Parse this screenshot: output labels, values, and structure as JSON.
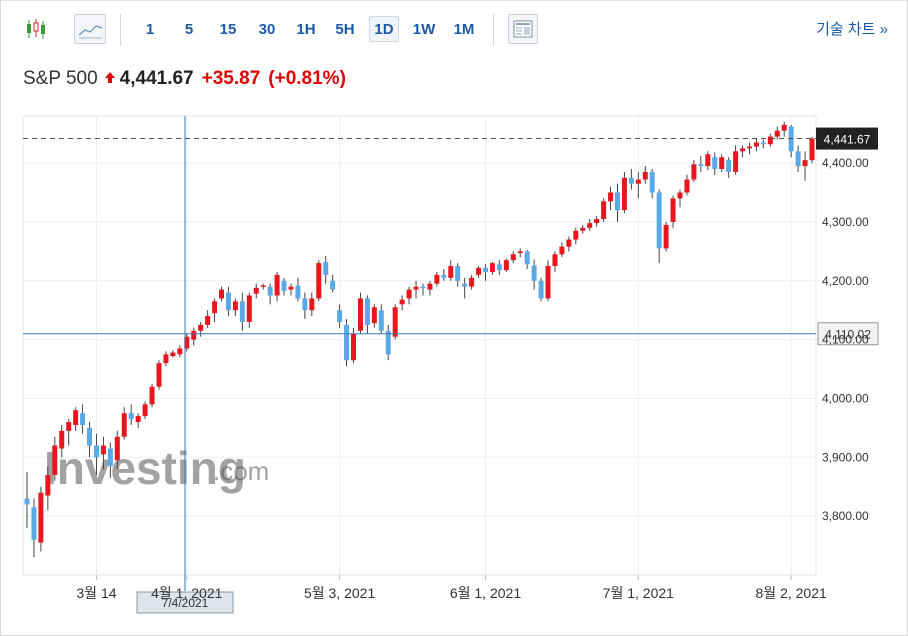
{
  "toolbar": {
    "intervals": [
      "1",
      "5",
      "15",
      "30",
      "1H",
      "5H",
      "1D",
      "1W",
      "1M"
    ],
    "active_interval": "1D",
    "tech_chart_label": "기술 차트 »",
    "icons": [
      "candlestick-chart-icon",
      "line-chart-icon",
      "news-layout-icon"
    ]
  },
  "quote": {
    "name": "S&P 500",
    "direction_icon": "up-arrow-icon",
    "price": "4,441.67",
    "change": "+35.87",
    "change_pct": "(+0.81%)"
  },
  "colors": {
    "up": "#e8171f",
    "down": "#5aa9e6",
    "accent_text": "#1a5aa6",
    "crosshair": "#3a78b5"
  },
  "watermark": {
    "brand": "Investing",
    "suffix": ".com"
  },
  "crosshair": {
    "x_label": "7/4/2021",
    "y_label": "4,110.02",
    "y_value": 4110.02
  },
  "chart_data": {
    "type": "candlestick",
    "title": "",
    "ylim": [
      3700,
      4480
    ],
    "y_ticks": [
      3800,
      3900,
      4000,
      4100,
      4200,
      4300,
      4400
    ],
    "y_tick_labels": [
      "3,800.00",
      "3,900.00",
      "4,000.00",
      "4,100.00",
      "4,200.00",
      "4,300.00",
      "4,400.00"
    ],
    "x_tick_labels": [
      "3월 14",
      "4월 1, 2021",
      "5월 3, 2021",
      "6월 1, 2021",
      "7월 1, 2021",
      "8월 2, 2021"
    ],
    "x_tick_index": [
      10,
      23,
      45,
      66,
      88,
      110
    ],
    "last_price": 4441.67,
    "last_price_label": "4,441.67",
    "grid": true,
    "candles": [
      [
        3830,
        3875,
        3780,
        3820
      ],
      [
        3815,
        3830,
        3730,
        3760
      ],
      [
        3755,
        3850,
        3740,
        3840
      ],
      [
        3835,
        3885,
        3810,
        3870
      ],
      [
        3870,
        3935,
        3860,
        3920
      ],
      [
        3915,
        3955,
        3900,
        3945
      ],
      [
        3945,
        3965,
        3920,
        3960
      ],
      [
        3955,
        3985,
        3945,
        3980
      ],
      [
        3975,
        3990,
        3940,
        3955
      ],
      [
        3950,
        3960,
        3900,
        3920
      ],
      [
        3920,
        3940,
        3870,
        3900
      ],
      [
        3905,
        3935,
        3880,
        3920
      ],
      [
        3915,
        3925,
        3865,
        3885
      ],
      [
        3895,
        3945,
        3880,
        3935
      ],
      [
        3935,
        3985,
        3930,
        3975
      ],
      [
        3975,
        3990,
        3955,
        3965
      ],
      [
        3960,
        3975,
        3950,
        3970
      ],
      [
        3970,
        3995,
        3965,
        3990
      ],
      [
        3990,
        4025,
        3985,
        4020
      ],
      [
        4020,
        4065,
        4015,
        4060
      ],
      [
        4060,
        4080,
        4055,
        4075
      ],
      [
        4072,
        4082,
        4070,
        4078
      ],
      [
        4075,
        4090,
        4070,
        4085
      ],
      [
        4085,
        4110,
        4080,
        4105
      ],
      [
        4100,
        4120,
        4090,
        4115
      ],
      [
        4115,
        4130,
        4105,
        4125
      ],
      [
        4125,
        4150,
        4120,
        4140
      ],
      [
        4145,
        4170,
        4130,
        4165
      ],
      [
        4170,
        4190,
        4165,
        4185
      ],
      [
        4180,
        4190,
        4140,
        4150
      ],
      [
        4150,
        4170,
        4140,
        4165
      ],
      [
        4165,
        4180,
        4115,
        4130
      ],
      [
        4130,
        4180,
        4120,
        4175
      ],
      [
        4178,
        4195,
        4170,
        4188
      ],
      [
        4190,
        4195,
        4185,
        4192
      ],
      [
        4190,
        4195,
        4160,
        4175
      ],
      [
        4175,
        4215,
        4165,
        4210
      ],
      [
        4200,
        4205,
        4175,
        4183
      ],
      [
        4185,
        4195,
        4175,
        4190
      ],
      [
        4192,
        4205,
        4165,
        4170
      ],
      [
        4170,
        4180,
        4135,
        4150
      ],
      [
        4150,
        4180,
        4140,
        4170
      ],
      [
        4170,
        4235,
        4165,
        4230
      ],
      [
        4232,
        4242,
        4195,
        4210
      ],
      [
        4200,
        4210,
        4180,
        4185
      ],
      [
        4150,
        4160,
        4120,
        4130
      ],
      [
        4125,
        4135,
        4055,
        4065
      ],
      [
        4065,
        4120,
        4060,
        4110
      ],
      [
        4115,
        4180,
        4110,
        4170
      ],
      [
        4170,
        4175,
        4110,
        4125
      ],
      [
        4128,
        4160,
        4120,
        4155
      ],
      [
        4150,
        4160,
        4110,
        4115
      ],
      [
        4115,
        4125,
        4065,
        4075
      ],
      [
        4105,
        4160,
        4100,
        4155
      ],
      [
        4160,
        4175,
        4150,
        4168
      ],
      [
        4170,
        4190,
        4160,
        4185
      ],
      [
        4185,
        4200,
        4170,
        4190
      ],
      [
        4190,
        4195,
        4175,
        4188
      ],
      [
        4185,
        4200,
        4175,
        4195
      ],
      [
        4195,
        4215,
        4190,
        4210
      ],
      [
        4210,
        4220,
        4200,
        4205
      ],
      [
        4205,
        4235,
        4200,
        4225
      ],
      [
        4225,
        4230,
        4190,
        4200
      ],
      [
        4195,
        4205,
        4170,
        4190
      ],
      [
        4190,
        4210,
        4185,
        4205
      ],
      [
        4210,
        4225,
        4205,
        4222
      ],
      [
        4222,
        4228,
        4200,
        4215
      ],
      [
        4215,
        4232,
        4210,
        4230
      ],
      [
        4228,
        4235,
        4210,
        4218
      ],
      [
        4218,
        4238,
        4215,
        4235
      ],
      [
        4235,
        4250,
        4230,
        4245
      ],
      [
        4247,
        4255,
        4240,
        4250
      ],
      [
        4250,
        4252,
        4220,
        4228
      ],
      [
        4226,
        4236,
        4185,
        4200
      ],
      [
        4200,
        4205,
        4165,
        4170
      ],
      [
        4170,
        4235,
        4165,
        4225
      ],
      [
        4225,
        4250,
        4215,
        4245
      ],
      [
        4245,
        4265,
        4240,
        4258
      ],
      [
        4258,
        4275,
        4250,
        4270
      ],
      [
        4270,
        4290,
        4262,
        4285
      ],
      [
        4285,
        4295,
        4280,
        4290
      ],
      [
        4290,
        4305,
        4285,
        4298
      ],
      [
        4298,
        4310,
        4292,
        4305
      ],
      [
        4305,
        4340,
        4300,
        4335
      ],
      [
        4335,
        4360,
        4320,
        4350
      ],
      [
        4350,
        4365,
        4300,
        4320
      ],
      [
        4320,
        4385,
        4315,
        4375
      ],
      [
        4375,
        4390,
        4355,
        4365
      ],
      [
        4365,
        4385,
        4340,
        4372
      ],
      [
        4372,
        4395,
        4365,
        4385
      ],
      [
        4385,
        4390,
        4340,
        4350
      ],
      [
        4350,
        4355,
        4230,
        4255
      ],
      [
        4255,
        4300,
        4250,
        4295
      ],
      [
        4300,
        4345,
        4290,
        4340
      ],
      [
        4340,
        4355,
        4325,
        4350
      ],
      [
        4350,
        4380,
        4345,
        4372
      ],
      [
        4372,
        4405,
        4368,
        4398
      ],
      [
        4398,
        4412,
        4385,
        4395
      ],
      [
        4395,
        4420,
        4388,
        4415
      ],
      [
        4410,
        4418,
        4380,
        4390
      ],
      [
        4390,
        4415,
        4385,
        4410
      ],
      [
        4405,
        4410,
        4375,
        4385
      ],
      [
        4385,
        4430,
        4380,
        4420
      ],
      [
        4420,
        4430,
        4410,
        4425
      ],
      [
        4425,
        4435,
        4415,
        4428
      ],
      [
        4428,
        4442,
        4420,
        4435
      ],
      [
        4435,
        4440,
        4425,
        4432
      ],
      [
        4432,
        4450,
        4428,
        4445
      ],
      [
        4445,
        4462,
        4440,
        4455
      ],
      [
        4455,
        4470,
        4445,
        4465
      ],
      [
        4462,
        4465,
        4410,
        4420
      ],
      [
        4420,
        4430,
        4385,
        4395
      ],
      [
        4395,
        4420,
        4370,
        4405
      ],
      [
        4405,
        4445,
        4400,
        4441.67
      ]
    ]
  }
}
